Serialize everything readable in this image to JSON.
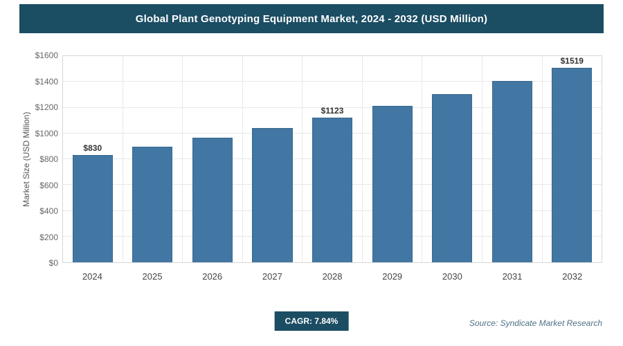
{
  "header": {
    "title": "Global Plant Genotyping Equipment Market, 2024 - 2032 (USD Million)"
  },
  "chart_data": {
    "type": "bar",
    "title": "Global Plant Genotyping Equipment Market, 2024 - 2032 (USD Million)",
    "categories": [
      "2024",
      "2025",
      "2026",
      "2027",
      "2028",
      "2029",
      "2030",
      "2031",
      "2032"
    ],
    "values": [
      830,
      895,
      965,
      1041,
      1123,
      1211,
      1306,
      1408,
      1519
    ],
    "data_labels": [
      "$830",
      "",
      "",
      "",
      "$1123",
      "",
      "",
      "",
      "$1519"
    ],
    "xlabel": "",
    "ylabel": "Market Size (USD Million)",
    "ylim": [
      0,
      1600
    ],
    "ytick_step": 200,
    "ytick_labels": [
      "$0",
      "$200",
      "$400",
      "$600",
      "$800",
      "$1000",
      "$1200",
      "$1400",
      "$1600"
    ],
    "grid": true,
    "legend": false,
    "bar_color": "#4277a3"
  },
  "footer": {
    "cagr_label": "CAGR: 7.84%",
    "source": "Source: Syndicate Market Research"
  },
  "colors": {
    "banner": "#1b4d63",
    "bar": "#4277a3",
    "bar_border": "#38678c",
    "badge": "#1b4d63"
  }
}
